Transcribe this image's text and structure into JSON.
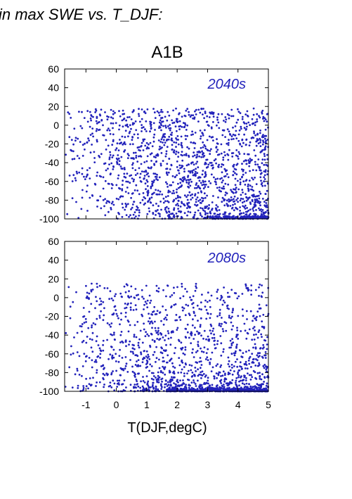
{
  "header": {
    "text": "in max SWE vs. T_DJF:"
  },
  "chart_data": {
    "type": "scatter",
    "title": "A1B",
    "xlabel": "T(DJF,degC)",
    "ylabel": "",
    "xlim": [
      -1.7,
      5.0
    ],
    "ylim": [
      -100,
      60
    ],
    "x_ticks": [
      -1,
      0,
      1,
      2,
      3,
      4,
      5
    ],
    "y_ticks": [
      60,
      40,
      20,
      0,
      -20,
      -40,
      -60,
      -80,
      -100
    ],
    "grid": false,
    "marker_color": "#2222bb",
    "panels": [
      {
        "label": "2040s",
        "n_points_approx": 1700,
        "y_max": 18,
        "density_peak_x": 3.5
      },
      {
        "label": "2080s",
        "n_points_approx": 1700,
        "y_max": 15,
        "density_peak_x": 3.5
      }
    ]
  }
}
